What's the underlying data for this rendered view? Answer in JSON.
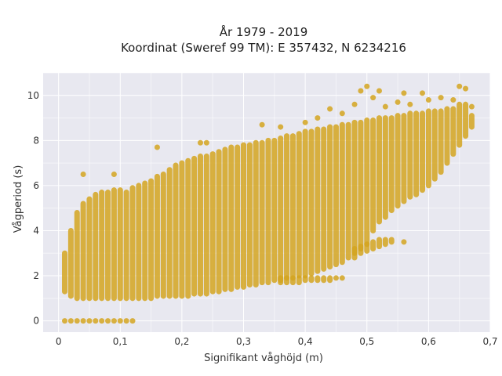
{
  "chart_data": {
    "type": "scatter",
    "title": "År 1979 - 2019",
    "subtitle": "Koordinat (Sweref 99 TM): E 357432, N 6234216",
    "xlabel": "Signifikant våghöjd (m)",
    "ylabel": "Vågperiod (s)",
    "xlim": [
      -0.025,
      0.7
    ],
    "ylim": [
      -0.5,
      11
    ],
    "x_ticks": [
      "0",
      "0,1",
      "0,2",
      "0,3",
      "0,4",
      "0,5",
      "0,6",
      "0,7"
    ],
    "y_ticks": [
      "0",
      "2",
      "4",
      "6",
      "8",
      "10"
    ],
    "grid": true,
    "legend": "none",
    "colors": {
      "plot_bg": "#E8E8F0",
      "marker": "#D4A520"
    },
    "series": [
      {
        "columns": [
          {
            "x": 0.01,
            "ymin": 0.0,
            "ymax": 0.0
          },
          {
            "x": 0.02,
            "ymin": 0.0,
            "ymax": 0.0
          },
          {
            "x": 0.03,
            "ymin": 0.0,
            "ymax": 0.0
          },
          {
            "x": 0.04,
            "ymin": 0.0,
            "ymax": 0.0
          },
          {
            "x": 0.05,
            "ymin": 0.0,
            "ymax": 0.0
          },
          {
            "x": 0.06,
            "ymin": 0.0,
            "ymax": 0.0
          },
          {
            "x": 0.07,
            "ymin": 0.0,
            "ymax": 0.0
          },
          {
            "x": 0.08,
            "ymin": 0.0,
            "ymax": 0.0
          },
          {
            "x": 0.09,
            "ymin": 0.0,
            "ymax": 0.0
          },
          {
            "x": 0.1,
            "ymin": 0.0,
            "ymax": 0.0
          },
          {
            "x": 0.11,
            "ymin": 0.0,
            "ymax": 0.0
          },
          {
            "x": 0.12,
            "ymin": 0.0,
            "ymax": 0.0
          },
          {
            "x": 0.01,
            "ymin": 1.3,
            "ymax": 3.0
          },
          {
            "x": 0.02,
            "ymin": 1.1,
            "ymax": 4.0
          },
          {
            "x": 0.03,
            "ymin": 1.0,
            "ymax": 4.8
          },
          {
            "x": 0.04,
            "ymin": 1.0,
            "ymax": 5.2
          },
          {
            "x": 0.05,
            "ymin": 1.0,
            "ymax": 5.4
          },
          {
            "x": 0.06,
            "ymin": 1.0,
            "ymax": 5.6
          },
          {
            "x": 0.07,
            "ymin": 1.0,
            "ymax": 5.7
          },
          {
            "x": 0.08,
            "ymin": 1.0,
            "ymax": 5.7
          },
          {
            "x": 0.09,
            "ymin": 1.0,
            "ymax": 5.8
          },
          {
            "x": 0.1,
            "ymin": 1.0,
            "ymax": 5.8
          },
          {
            "x": 0.11,
            "ymin": 1.0,
            "ymax": 5.7
          },
          {
            "x": 0.12,
            "ymin": 1.0,
            "ymax": 5.9
          },
          {
            "x": 0.13,
            "ymin": 1.0,
            "ymax": 6.0
          },
          {
            "x": 0.14,
            "ymin": 1.0,
            "ymax": 6.1
          },
          {
            "x": 0.15,
            "ymin": 1.0,
            "ymax": 6.2
          },
          {
            "x": 0.16,
            "ymin": 1.1,
            "ymax": 6.4
          },
          {
            "x": 0.17,
            "ymin": 1.1,
            "ymax": 6.5
          },
          {
            "x": 0.18,
            "ymin": 1.1,
            "ymax": 6.7
          },
          {
            "x": 0.19,
            "ymin": 1.1,
            "ymax": 6.9
          },
          {
            "x": 0.2,
            "ymin": 1.1,
            "ymax": 7.0
          },
          {
            "x": 0.21,
            "ymin": 1.1,
            "ymax": 7.1
          },
          {
            "x": 0.22,
            "ymin": 1.2,
            "ymax": 7.2
          },
          {
            "x": 0.23,
            "ymin": 1.2,
            "ymax": 7.3
          },
          {
            "x": 0.24,
            "ymin": 1.2,
            "ymax": 7.3
          },
          {
            "x": 0.25,
            "ymin": 1.3,
            "ymax": 7.4
          },
          {
            "x": 0.26,
            "ymin": 1.3,
            "ymax": 7.5
          },
          {
            "x": 0.27,
            "ymin": 1.4,
            "ymax": 7.6
          },
          {
            "x": 0.28,
            "ymin": 1.4,
            "ymax": 7.7
          },
          {
            "x": 0.29,
            "ymin": 1.5,
            "ymax": 7.7
          },
          {
            "x": 0.3,
            "ymin": 1.5,
            "ymax": 7.8
          },
          {
            "x": 0.31,
            "ymin": 1.6,
            "ymax": 7.8
          },
          {
            "x": 0.32,
            "ymin": 1.6,
            "ymax": 7.9
          },
          {
            "x": 0.33,
            "ymin": 1.7,
            "ymax": 7.9
          },
          {
            "x": 0.34,
            "ymin": 1.7,
            "ymax": 8.0
          },
          {
            "x": 0.35,
            "ymin": 1.8,
            "ymax": 8.0
          },
          {
            "x": 0.36,
            "ymin": 1.8,
            "ymax": 8.1
          },
          {
            "x": 0.37,
            "ymin": 1.9,
            "ymax": 8.2
          },
          {
            "x": 0.38,
            "ymin": 1.9,
            "ymax": 8.2
          },
          {
            "x": 0.39,
            "ymin": 2.0,
            "ymax": 8.3
          },
          {
            "x": 0.4,
            "ymin": 2.0,
            "ymax": 8.4
          },
          {
            "x": 0.41,
            "ymin": 2.1,
            "ymax": 8.4
          },
          {
            "x": 0.42,
            "ymin": 2.2,
            "ymax": 8.5
          },
          {
            "x": 0.43,
            "ymin": 2.3,
            "ymax": 8.5
          },
          {
            "x": 0.44,
            "ymin": 2.4,
            "ymax": 8.6
          },
          {
            "x": 0.45,
            "ymin": 2.5,
            "ymax": 8.6
          },
          {
            "x": 0.46,
            "ymin": 2.6,
            "ymax": 8.7
          },
          {
            "x": 0.47,
            "ymin": 2.8,
            "ymax": 8.7
          },
          {
            "x": 0.48,
            "ymin": 3.0,
            "ymax": 8.8
          },
          {
            "x": 0.49,
            "ymin": 3.2,
            "ymax": 8.8
          },
          {
            "x": 0.5,
            "ymin": 3.4,
            "ymax": 8.9
          },
          {
            "x": 0.51,
            "ymin": 4.0,
            "ymax": 8.9
          },
          {
            "x": 0.52,
            "ymin": 4.4,
            "ymax": 9.0
          },
          {
            "x": 0.53,
            "ymin": 4.6,
            "ymax": 9.0
          },
          {
            "x": 0.54,
            "ymin": 4.9,
            "ymax": 9.0
          },
          {
            "x": 0.55,
            "ymin": 5.1,
            "ymax": 9.1
          },
          {
            "x": 0.56,
            "ymin": 5.3,
            "ymax": 9.1
          },
          {
            "x": 0.57,
            "ymin": 5.5,
            "ymax": 9.2
          },
          {
            "x": 0.58,
            "ymin": 5.6,
            "ymax": 9.2
          },
          {
            "x": 0.59,
            "ymin": 5.8,
            "ymax": 9.2
          },
          {
            "x": 0.6,
            "ymin": 6.0,
            "ymax": 9.3
          },
          {
            "x": 0.61,
            "ymin": 6.3,
            "ymax": 9.3
          },
          {
            "x": 0.62,
            "ymin": 6.6,
            "ymax": 9.3
          },
          {
            "x": 0.63,
            "ymin": 7.0,
            "ymax": 9.4
          },
          {
            "x": 0.64,
            "ymin": 7.4,
            "ymax": 9.4
          },
          {
            "x": 0.65,
            "ymin": 7.8,
            "ymax": 9.6
          },
          {
            "x": 0.66,
            "ymin": 8.2,
            "ymax": 9.6
          },
          {
            "x": 0.67,
            "ymin": 8.6,
            "ymax": 9.1
          },
          {
            "x": 0.36,
            "ymin": 1.7,
            "ymax": 1.9
          },
          {
            "x": 0.37,
            "ymin": 1.7,
            "ymax": 1.9
          },
          {
            "x": 0.38,
            "ymin": 1.7,
            "ymax": 1.9
          },
          {
            "x": 0.39,
            "ymin": 1.7,
            "ymax": 1.9
          },
          {
            "x": 0.4,
            "ymin": 1.8,
            "ymax": 1.9
          },
          {
            "x": 0.41,
            "ymin": 1.8,
            "ymax": 1.9
          },
          {
            "x": 0.42,
            "ymin": 1.8,
            "ymax": 1.9
          },
          {
            "x": 0.43,
            "ymin": 1.8,
            "ymax": 1.9
          },
          {
            "x": 0.44,
            "ymin": 1.8,
            "ymax": 1.9
          },
          {
            "x": 0.45,
            "ymin": 1.9,
            "ymax": 1.9
          },
          {
            "x": 0.46,
            "ymin": 1.9,
            "ymax": 1.9
          },
          {
            "x": 0.48,
            "ymin": 2.8,
            "ymax": 3.2
          },
          {
            "x": 0.49,
            "ymin": 3.0,
            "ymax": 3.3
          },
          {
            "x": 0.5,
            "ymin": 3.1,
            "ymax": 3.4
          },
          {
            "x": 0.51,
            "ymin": 3.2,
            "ymax": 3.5
          },
          {
            "x": 0.52,
            "ymin": 3.3,
            "ymax": 3.6
          },
          {
            "x": 0.53,
            "ymin": 3.4,
            "ymax": 3.6
          },
          {
            "x": 0.54,
            "ymin": 3.5,
            "ymax": 3.6
          },
          {
            "x": 0.56,
            "ymin": 3.5,
            "ymax": 3.5
          }
        ],
        "points": [
          {
            "x": 0.04,
            "y": 6.5
          },
          {
            "x": 0.09,
            "y": 6.5
          },
          {
            "x": 0.16,
            "y": 7.7
          },
          {
            "x": 0.23,
            "y": 7.9
          },
          {
            "x": 0.24,
            "y": 7.9
          },
          {
            "x": 0.33,
            "y": 8.7
          },
          {
            "x": 0.36,
            "y": 8.6
          },
          {
            "x": 0.4,
            "y": 8.8
          },
          {
            "x": 0.42,
            "y": 9.0
          },
          {
            "x": 0.44,
            "y": 9.4
          },
          {
            "x": 0.46,
            "y": 9.2
          },
          {
            "x": 0.48,
            "y": 9.6
          },
          {
            "x": 0.49,
            "y": 10.2
          },
          {
            "x": 0.5,
            "y": 10.4
          },
          {
            "x": 0.51,
            "y": 9.9
          },
          {
            "x": 0.52,
            "y": 10.2
          },
          {
            "x": 0.53,
            "y": 9.5
          },
          {
            "x": 0.55,
            "y": 9.7
          },
          {
            "x": 0.56,
            "y": 10.1
          },
          {
            "x": 0.57,
            "y": 9.6
          },
          {
            "x": 0.59,
            "y": 10.1
          },
          {
            "x": 0.6,
            "y": 9.8
          },
          {
            "x": 0.62,
            "y": 9.9
          },
          {
            "x": 0.64,
            "y": 9.8
          },
          {
            "x": 0.65,
            "y": 10.4
          },
          {
            "x": 0.66,
            "y": 10.3
          },
          {
            "x": 0.67,
            "y": 9.5
          }
        ]
      }
    ]
  }
}
